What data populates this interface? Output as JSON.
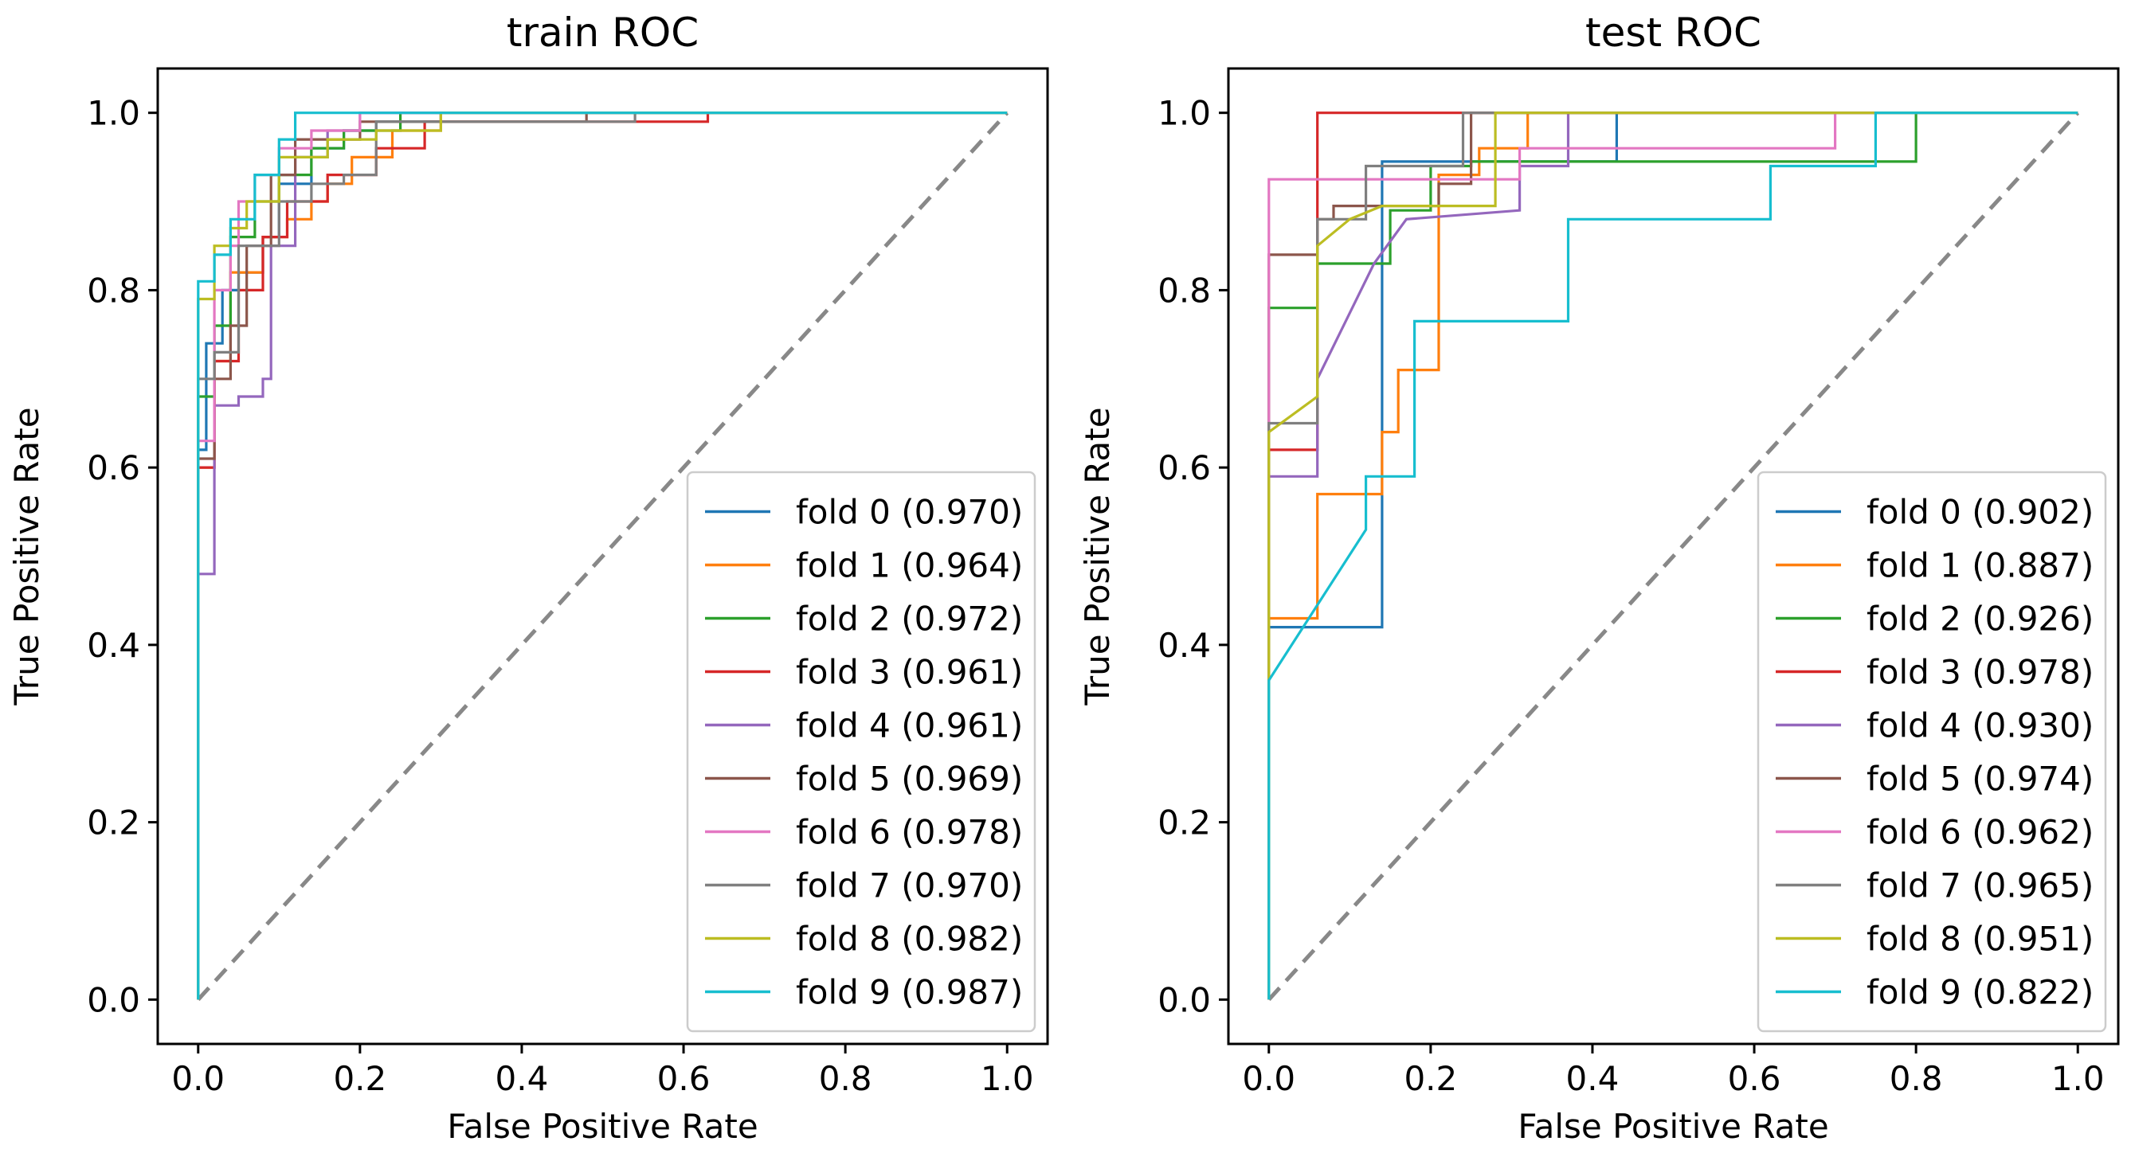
{
  "chart_data": [
    {
      "type": "line",
      "title": "train ROC",
      "xlabel": "False Positive Rate",
      "ylabel": "True Positive Rate",
      "xlim": [
        -0.05,
        1.05
      ],
      "ylim": [
        -0.05,
        1.05
      ],
      "xticks": [
        "0.0",
        "0.2",
        "0.4",
        "0.6",
        "0.8",
        "1.0"
      ],
      "yticks": [
        "0.0",
        "0.2",
        "0.4",
        "0.6",
        "0.8",
        "1.0"
      ],
      "legend_position": "lower-right",
      "diagonal": true,
      "series": [
        {
          "name": "fold 0",
          "label": "fold 0 (0.970)",
          "color": "#1f77b4",
          "x": [
            0,
            0,
            0.01,
            0.01,
            0.03,
            0.03,
            0.05,
            0.05,
            0.08,
            0.08,
            0.1,
            0.1,
            0.14,
            0.14,
            0.18,
            0.18,
            0.22,
            0.22,
            0.3,
            0.3,
            1
          ],
          "y": [
            0,
            0.62,
            0.62,
            0.74,
            0.74,
            0.8,
            0.8,
            0.82,
            0.82,
            0.86,
            0.86,
            0.92,
            0.92,
            0.96,
            0.96,
            0.98,
            0.98,
            0.99,
            0.99,
            1.0,
            1.0
          ]
        },
        {
          "name": "fold 1",
          "label": "fold 1 (0.964)",
          "color": "#ff7f0e",
          "x": [
            0,
            0,
            0.02,
            0.02,
            0.04,
            0.04,
            0.08,
            0.08,
            0.11,
            0.11,
            0.14,
            0.14,
            0.16,
            0.16,
            0.19,
            0.19,
            0.24,
            0.24,
            0.3,
            0.3,
            1
          ],
          "y": [
            0,
            0.6,
            0.6,
            0.72,
            0.72,
            0.82,
            0.82,
            0.86,
            0.86,
            0.88,
            0.88,
            0.9,
            0.9,
            0.92,
            0.92,
            0.95,
            0.95,
            0.98,
            0.98,
            1.0,
            1.0
          ]
        },
        {
          "name": "fold 2",
          "label": "fold 2 (0.972)",
          "color": "#2ca02c",
          "x": [
            0,
            0,
            0.02,
            0.02,
            0.04,
            0.04,
            0.07,
            0.07,
            0.1,
            0.1,
            0.14,
            0.14,
            0.18,
            0.18,
            0.25,
            0.25,
            1
          ],
          "y": [
            0,
            0.68,
            0.68,
            0.76,
            0.76,
            0.86,
            0.86,
            0.9,
            0.9,
            0.93,
            0.93,
            0.96,
            0.96,
            0.98,
            0.98,
            1.0,
            1.0
          ]
        },
        {
          "name": "fold 3",
          "label": "fold 3 (0.961)",
          "color": "#d62728",
          "x": [
            0,
            0,
            0.02,
            0.02,
            0.05,
            0.05,
            0.08,
            0.08,
            0.11,
            0.11,
            0.16,
            0.16,
            0.22,
            0.22,
            0.28,
            0.28,
            0.63,
            0.63,
            1
          ],
          "y": [
            0,
            0.6,
            0.6,
            0.72,
            0.72,
            0.8,
            0.8,
            0.86,
            0.86,
            0.9,
            0.9,
            0.93,
            0.93,
            0.96,
            0.96,
            0.99,
            0.99,
            1.0,
            1.0
          ]
        },
        {
          "name": "fold 4",
          "label": "fold 4 (0.961)",
          "color": "#9467bd",
          "x": [
            0,
            0,
            0.02,
            0.02,
            0.05,
            0.05,
            0.08,
            0.08,
            0.09,
            0.09,
            0.12,
            0.12,
            0.16,
            0.16,
            0.2,
            0.2,
            1
          ],
          "y": [
            0,
            0.48,
            0.48,
            0.67,
            0.67,
            0.68,
            0.68,
            0.7,
            0.7,
            0.85,
            0.85,
            0.95,
            0.95,
            0.98,
            0.98,
            1.0,
            1.0
          ]
        },
        {
          "name": "fold 5",
          "label": "fold 5 (0.969)",
          "color": "#8c564b",
          "x": [
            0,
            0,
            0.02,
            0.02,
            0.04,
            0.04,
            0.06,
            0.06,
            0.09,
            0.09,
            0.12,
            0.12,
            0.2,
            0.2,
            0.48,
            0.48,
            1
          ],
          "y": [
            0,
            0.61,
            0.61,
            0.7,
            0.7,
            0.76,
            0.76,
            0.85,
            0.85,
            0.93,
            0.93,
            0.97,
            0.97,
            0.99,
            0.99,
            1.0,
            1.0
          ]
        },
        {
          "name": "fold 6",
          "label": "fold 6 (0.978)",
          "color": "#e377c2",
          "x": [
            0,
            0,
            0.02,
            0.02,
            0.04,
            0.04,
            0.05,
            0.05,
            0.07,
            0.07,
            0.1,
            0.1,
            0.14,
            0.14,
            0.2,
            0.2,
            1
          ],
          "y": [
            0,
            0.63,
            0.63,
            0.8,
            0.8,
            0.85,
            0.85,
            0.9,
            0.9,
            0.93,
            0.93,
            0.96,
            0.96,
            0.98,
            0.98,
            1.0,
            1.0
          ]
        },
        {
          "name": "fold 7",
          "label": "fold 7 (0.970)",
          "color": "#7f7f7f",
          "x": [
            0,
            0,
            0.02,
            0.02,
            0.05,
            0.05,
            0.1,
            0.1,
            0.14,
            0.14,
            0.18,
            0.18,
            0.22,
            0.22,
            0.54,
            0.54,
            1
          ],
          "y": [
            0,
            0.7,
            0.7,
            0.73,
            0.73,
            0.85,
            0.85,
            0.9,
            0.9,
            0.92,
            0.92,
            0.93,
            0.93,
            0.99,
            0.99,
            1.0,
            1.0
          ]
        },
        {
          "name": "fold 8",
          "label": "fold 8 (0.982)",
          "color": "#bcbd22",
          "x": [
            0,
            0,
            0.02,
            0.02,
            0.04,
            0.04,
            0.06,
            0.06,
            0.1,
            0.1,
            0.16,
            0.16,
            0.22,
            0.22,
            0.3,
            0.3,
            1
          ],
          "y": [
            0,
            0.79,
            0.79,
            0.85,
            0.85,
            0.87,
            0.87,
            0.9,
            0.9,
            0.95,
            0.95,
            0.97,
            0.97,
            0.98,
            0.98,
            1.0,
            1.0
          ]
        },
        {
          "name": "fold 9",
          "label": "fold 9 (0.987)",
          "color": "#17becf",
          "x": [
            0,
            0,
            0.02,
            0.02,
            0.04,
            0.04,
            0.07,
            0.07,
            0.1,
            0.1,
            0.12,
            0.12,
            1
          ],
          "y": [
            0,
            0.81,
            0.81,
            0.84,
            0.84,
            0.88,
            0.88,
            0.93,
            0.93,
            0.97,
            0.97,
            1.0,
            1.0
          ]
        }
      ]
    },
    {
      "type": "line",
      "title": "test ROC",
      "xlabel": "False Positive Rate",
      "ylabel": "True Positive Rate",
      "xlim": [
        -0.05,
        1.05
      ],
      "ylim": [
        -0.05,
        1.05
      ],
      "xticks": [
        "0.0",
        "0.2",
        "0.4",
        "0.6",
        "0.8",
        "1.0"
      ],
      "yticks": [
        "0.0",
        "0.2",
        "0.4",
        "0.6",
        "0.8",
        "1.0"
      ],
      "legend_position": "lower-right",
      "diagonal": true,
      "series": [
        {
          "name": "fold 0",
          "label": "fold 0 (0.902)",
          "color": "#1f77b4",
          "x": [
            0,
            0,
            0.14,
            0.14,
            0.43,
            0.43,
            1
          ],
          "y": [
            0,
            0.42,
            0.42,
            0.945,
            0.945,
            1.0,
            1.0
          ]
        },
        {
          "name": "fold 1",
          "label": "fold 1 (0.887)",
          "color": "#ff7f0e",
          "x": [
            0,
            0,
            0.06,
            0.06,
            0.14,
            0.14,
            0.16,
            0.16,
            0.21,
            0.21,
            0.26,
            0.26,
            0.32,
            0.32,
            1
          ],
          "y": [
            0,
            0.43,
            0.43,
            0.57,
            0.57,
            0.64,
            0.64,
            0.71,
            0.71,
            0.93,
            0.93,
            0.96,
            0.96,
            1.0,
            1.0
          ]
        },
        {
          "name": "fold 2",
          "label": "fold 2 (0.926)",
          "color": "#2ca02c",
          "x": [
            0,
            0,
            0.06,
            0.06,
            0.15,
            0.15,
            0.2,
            0.2,
            0.25,
            0.25,
            0.8,
            0.8,
            1
          ],
          "y": [
            0,
            0.78,
            0.78,
            0.83,
            0.83,
            0.89,
            0.89,
            0.94,
            0.94,
            0.945,
            0.945,
            1.0,
            1.0
          ]
        },
        {
          "name": "fold 3",
          "label": "fold 3 (0.978)",
          "color": "#d62728",
          "x": [
            0,
            0,
            0.06,
            0.06,
            1
          ],
          "y": [
            0,
            0.62,
            0.62,
            1.0,
            1.0
          ]
        },
        {
          "name": "fold 4",
          "label": "fold 4 (0.930)",
          "color": "#9467bd",
          "x": [
            0,
            0,
            0.06,
            0.06,
            0.13,
            0.17,
            0.31,
            0.31,
            0.37,
            0.37,
            1
          ],
          "y": [
            0,
            0.59,
            0.59,
            0.7,
            0.83,
            0.88,
            0.89,
            0.94,
            0.94,
            1.0,
            1.0
          ]
        },
        {
          "name": "fold 5",
          "label": "fold 5 (0.974)",
          "color": "#8c564b",
          "x": [
            0,
            0,
            0.06,
            0.06,
            0.08,
            0.08,
            0.21,
            0.21,
            0.25,
            0.25,
            1
          ],
          "y": [
            0,
            0.84,
            0.84,
            0.88,
            0.88,
            0.895,
            0.895,
            0.92,
            0.92,
            1.0,
            1.0
          ]
        },
        {
          "name": "fold 6",
          "label": "fold 6 (0.962)",
          "color": "#e377c2",
          "x": [
            0,
            0,
            0.31,
            0.31,
            0.7,
            0.7,
            1
          ],
          "y": [
            0,
            0.925,
            0.925,
            0.96,
            0.96,
            1.0,
            1.0
          ]
        },
        {
          "name": "fold 7",
          "label": "fold 7 (0.965)",
          "color": "#7f7f7f",
          "x": [
            0,
            0,
            0.06,
            0.06,
            0.12,
            0.12,
            0.24,
            0.24,
            1
          ],
          "y": [
            0,
            0.65,
            0.65,
            0.88,
            0.88,
            0.94,
            0.94,
            1.0,
            1.0
          ]
        },
        {
          "name": "fold 8",
          "label": "fold 8 (0.951)",
          "color": "#bcbd22",
          "x": [
            0,
            0,
            0.06,
            0.06,
            0.1,
            0.14,
            0.28,
            0.28,
            1
          ],
          "y": [
            0,
            0.64,
            0.68,
            0.85,
            0.88,
            0.895,
            0.895,
            1.0,
            1.0
          ]
        },
        {
          "name": "fold 9",
          "label": "fold 9 (0.822)",
          "color": "#17becf",
          "x": [
            0,
            0,
            0.12,
            0.12,
            0.18,
            0.18,
            0.37,
            0.37,
            0.62,
            0.62,
            0.75,
            0.75,
            1
          ],
          "y": [
            0,
            0.36,
            0.53,
            0.59,
            0.59,
            0.765,
            0.765,
            0.88,
            0.88,
            0.94,
            0.94,
            1.0,
            1.0
          ]
        }
      ]
    }
  ]
}
